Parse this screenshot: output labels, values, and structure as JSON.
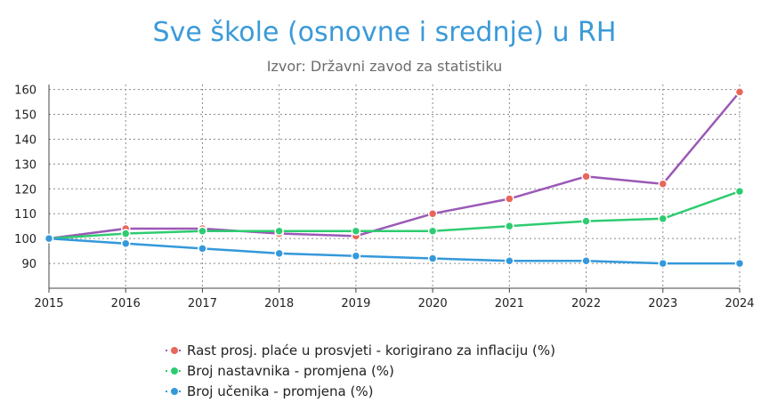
{
  "chart_data": {
    "type": "line",
    "title": "Sve škole (osnovne i srednje) u RH",
    "subtitle": "Izvor: Državni zavod za statistiku",
    "x": [
      "2015",
      "2016",
      "2017",
      "2018",
      "2019",
      "2020",
      "2021",
      "2022",
      "2023",
      "2024"
    ],
    "y_ticks": [
      "90",
      "100",
      "110",
      "120",
      "130",
      "140",
      "150",
      "160"
    ],
    "ylim": [
      80,
      162
    ],
    "grid": true,
    "legend_position": "bottom-center",
    "series": [
      {
        "name": "Rast prosj. plaće u prosvjeti - korigirano za inflaciju (%)",
        "values": [
          100,
          104,
          104,
          102,
          101,
          110,
          116,
          125,
          122,
          159
        ],
        "line_color": "#9b59b6",
        "marker_color": "#e8665a"
      },
      {
        "name": "Broj nastavnika - promjena (%)",
        "values": [
          100,
          102,
          103,
          103,
          103,
          103,
          105,
          107,
          108,
          119
        ],
        "line_color": "#2ecc71",
        "marker_color": "#2ecc71"
      },
      {
        "name": "Broj učenika - promjena (%)",
        "values": [
          100,
          98,
          96,
          94,
          93,
          92,
          91,
          91,
          90,
          90
        ],
        "line_color": "#3498db",
        "marker_color": "#3498db"
      }
    ]
  }
}
